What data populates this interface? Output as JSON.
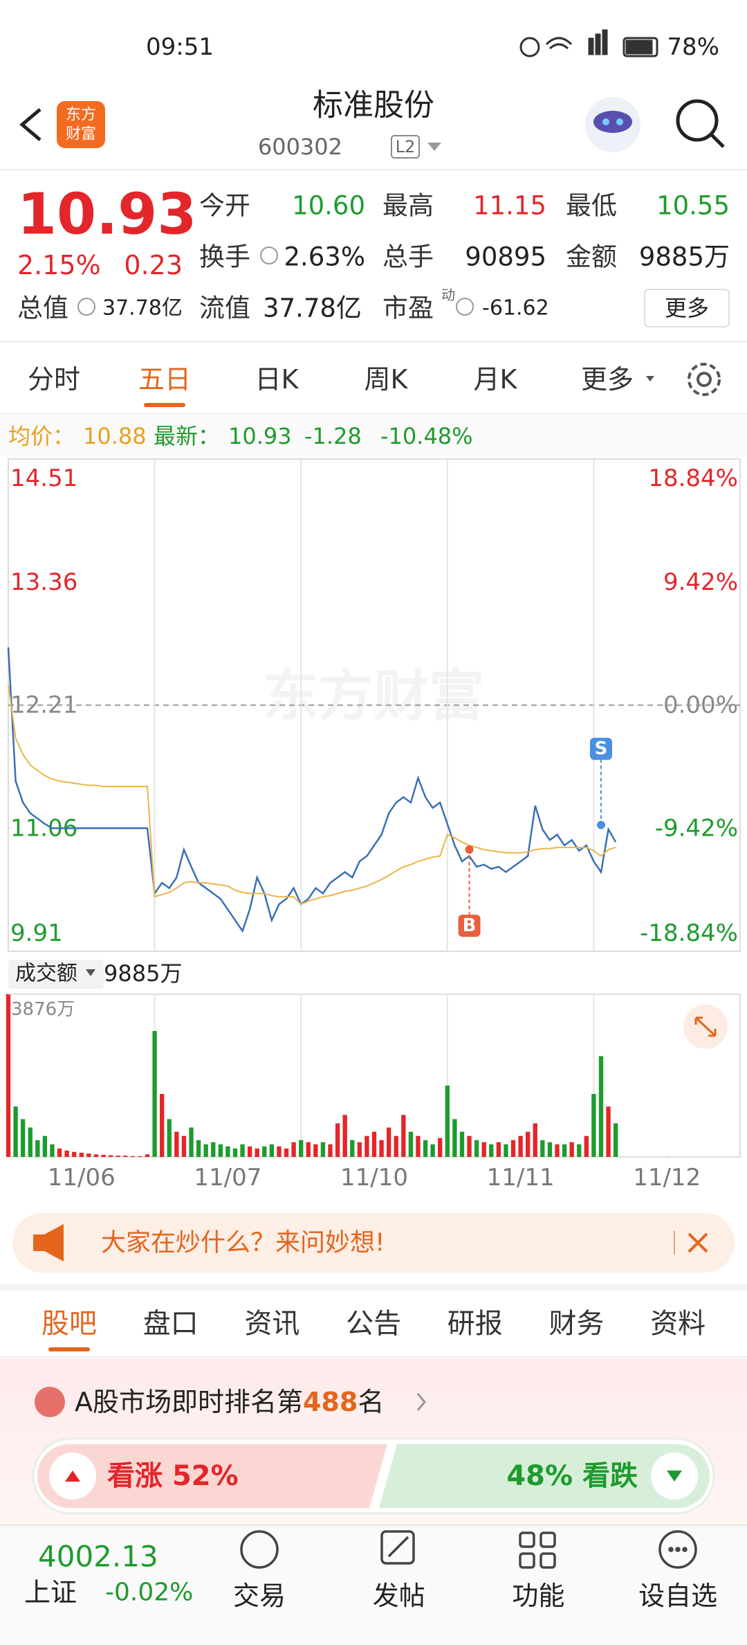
{
  "status_bar": {
    "time": "09:51",
    "battery": "78%"
  },
  "header": {
    "logo": [
      "东方",
      "财富"
    ],
    "title": "标准股份",
    "code": "600302",
    "level": "L2"
  },
  "quote": {
    "price": "10.93",
    "change_pct": "2.15%",
    "change": "0.23",
    "open": {
      "label": "今开",
      "value": "10.60"
    },
    "high": {
      "label": "最高",
      "value": "11.15"
    },
    "low": {
      "label": "最低",
      "value": "10.55"
    },
    "turnover": {
      "label": "换手",
      "value": "2.63%"
    },
    "volume": {
      "label": "总手",
      "value": "90895"
    },
    "amount": {
      "label": "金额",
      "value": "9885万"
    },
    "market_cap": {
      "label": "总值",
      "value": "37.78亿"
    },
    "float_cap": {
      "label": "流值",
      "value": "37.78亿"
    },
    "pe": {
      "label": "市盈",
      "sup": "动",
      "value": "-61.62"
    },
    "more": "更多"
  },
  "tabs": [
    "分时",
    "五日",
    "日K",
    "周K",
    "月K",
    "更多"
  ],
  "info": {
    "avg_label": "均价：",
    "avg": "10.88",
    "last_label": "最新：",
    "last": "10.93",
    "change": "-1.28",
    "change_pct": "-10.48%"
  },
  "watermark": "东方财富",
  "chart_data": [
    {
      "type": "line",
      "x": [
        0,
        1,
        2,
        3,
        4,
        5,
        6,
        7,
        8,
        9,
        10,
        11,
        12,
        13,
        14,
        15,
        16,
        17,
        18,
        19,
        20,
        21,
        22,
        23,
        24,
        25,
        26,
        27,
        28,
        29,
        30,
        31,
        32,
        33,
        34,
        35,
        36,
        37,
        38,
        39,
        40,
        41,
        42,
        43,
        44,
        45,
        46,
        47,
        48,
        49,
        50,
        51,
        52,
        53,
        54,
        55,
        56,
        57,
        58,
        59,
        60,
        61,
        62,
        63,
        64,
        65,
        66,
        67,
        68,
        69,
        70,
        71,
        72,
        73,
        74,
        75,
        76,
        77,
        78,
        79,
        80,
        81,
        82,
        83
      ],
      "xlim": [
        0,
        100
      ],
      "ylim": [
        9.91,
        14.51
      ],
      "yticks": [
        9.91,
        11.06,
        12.21,
        13.36,
        14.51
      ],
      "y2lim": [
        -18.84,
        18.84
      ],
      "y2ticks": [
        {
          "value": -18.84,
          "label": "-18.84%"
        },
        {
          "value": -9.42,
          "label": "-9.42%"
        },
        {
          "value": 0,
          "label": "0.00%"
        },
        {
          "value": 9.42,
          "label": "9.42%"
        },
        {
          "value": 18.84,
          "label": "18.84%"
        }
      ],
      "prev_close": 12.21,
      "series": [
        {
          "color": "#3b6fb6",
          "values": [
            12.75,
            11.5,
            11.3,
            11.2,
            11.15,
            11.1,
            11.06,
            11.06,
            11.06,
            11.06,
            11.06,
            11.06,
            11.06,
            11.06,
            11.06,
            11.06,
            11.06,
            11.06,
            11.06,
            11.06,
            10.45,
            10.55,
            10.5,
            10.6,
            10.86,
            10.7,
            10.55,
            10.5,
            10.45,
            10.4,
            10.3,
            10.2,
            10.1,
            10.3,
            10.6,
            10.45,
            10.2,
            10.35,
            10.4,
            10.5,
            10.35,
            10.4,
            10.5,
            10.45,
            10.55,
            10.6,
            10.65,
            10.6,
            10.75,
            10.8,
            10.9,
            11.0,
            11.2,
            11.3,
            11.35,
            11.3,
            11.53,
            11.35,
            11.25,
            11.3,
            11.1,
            10.9,
            10.75,
            10.8,
            10.7,
            10.72,
            10.68,
            10.7,
            10.65,
            10.7,
            10.75,
            10.8,
            11.27,
            11.05,
            10.95,
            11.0,
            10.9,
            10.95,
            10.85,
            10.9,
            10.75,
            10.65,
            11.05,
            10.93
          ]
        },
        {
          "color": "#e9b548",
          "values": [
            12.4,
            11.9,
            11.75,
            11.65,
            11.6,
            11.55,
            11.52,
            11.5,
            11.49,
            11.48,
            11.47,
            11.46,
            11.46,
            11.45,
            11.45,
            11.45,
            11.45,
            11.45,
            11.45,
            11.45,
            10.42,
            10.44,
            10.46,
            10.5,
            10.55,
            10.56,
            10.55,
            10.55,
            10.54,
            10.53,
            10.52,
            10.48,
            10.46,
            10.45,
            10.45,
            10.45,
            10.43,
            10.42,
            10.42,
            10.42,
            10.35,
            10.38,
            10.4,
            10.42,
            10.43,
            10.45,
            10.47,
            10.48,
            10.5,
            10.52,
            10.55,
            10.58,
            10.62,
            10.66,
            10.7,
            10.72,
            10.75,
            10.77,
            10.79,
            10.8,
            11.0,
            10.97,
            10.93,
            10.9,
            10.88,
            10.86,
            10.85,
            10.84,
            10.83,
            10.83,
            10.83,
            10.84,
            10.86,
            10.87,
            10.87,
            10.88,
            10.88,
            10.88,
            10.88,
            10.88,
            10.85,
            10.8,
            10.86,
            10.88
          ]
        }
      ],
      "annotations": [
        {
          "label": "B",
          "x": 63,
          "y": 10.86,
          "color": "#e8603c"
        },
        {
          "label": "S",
          "x": 81,
          "y": 11.09,
          "color": "#4a8fe0"
        }
      ]
    },
    {
      "type": "bar",
      "title": "成交额",
      "value_label": "9885万",
      "x": [
        0,
        1,
        2,
        3,
        4,
        5,
        6,
        7,
        8,
        9,
        10,
        11,
        12,
        13,
        14,
        15,
        16,
        17,
        18,
        19,
        20,
        21,
        22,
        23,
        24,
        25,
        26,
        27,
        28,
        29,
        30,
        31,
        32,
        33,
        34,
        35,
        36,
        37,
        38,
        39,
        40,
        41,
        42,
        43,
        44,
        45,
        46,
        47,
        48,
        49,
        50,
        51,
        52,
        53,
        54,
        55,
        56,
        57,
        58,
        59,
        60,
        61,
        62,
        63,
        64,
        65,
        66,
        67,
        68,
        69,
        70,
        71,
        72,
        73,
        74,
        75,
        76,
        77,
        78,
        79,
        80,
        81,
        82,
        83
      ],
      "xlim": [
        0,
        100
      ],
      "values": [
        3876,
        1200,
        900,
        700,
        400,
        500,
        300,
        200,
        150,
        120,
        100,
        80,
        60,
        50,
        40,
        30,
        30,
        20,
        20,
        60,
        3000,
        1500,
        900,
        600,
        500,
        700,
        400,
        300,
        350,
        300,
        250,
        200,
        300,
        250,
        200,
        250,
        300,
        250,
        200,
        350,
        400,
        350,
        300,
        350,
        300,
        800,
        1000,
        400,
        350,
        500,
        600,
        400,
        700,
        500,
        1000,
        600,
        500,
        400,
        300,
        450,
        1700,
        900,
        600,
        500,
        400,
        350,
        300,
        350,
        300,
        400,
        500,
        600,
        800,
        400,
        350,
        300,
        300,
        350,
        300,
        500,
        1500,
        2400,
        1200,
        800
      ],
      "ylim": [
        0,
        3876
      ],
      "yticks": [
        {
          "value": 3876,
          "label": "3876万"
        }
      ],
      "xticks": [
        {
          "value": 10,
          "label": "11/06"
        },
        {
          "value": 30,
          "label": "11/07"
        },
        {
          "value": 50,
          "label": "11/10"
        },
        {
          "value": 70,
          "label": "11/11"
        },
        {
          "value": 90,
          "label": "11/12"
        }
      ],
      "up_color": "#e3262a",
      "down_color": "#1e9b2e"
    }
  ],
  "banner": {
    "text": "大家在炒什么？来问妙想!"
  },
  "section_tabs": [
    "股吧",
    "盘口",
    "资讯",
    "公告",
    "研报",
    "财务",
    "资料"
  ],
  "ranking": {
    "prefix": "A股市场即时排名第",
    "rank": "488",
    "suffix": "名"
  },
  "sentiment": {
    "bull_label": "看涨",
    "bull_pct": "52%",
    "bear_pct": "48%",
    "bear_label": "看跌"
  },
  "bottom_nav": {
    "index_value": "4002.13",
    "index_name": "上证",
    "index_change": "-0.02%",
    "items": [
      "交易",
      "发帖",
      "功能",
      "设自选"
    ]
  }
}
